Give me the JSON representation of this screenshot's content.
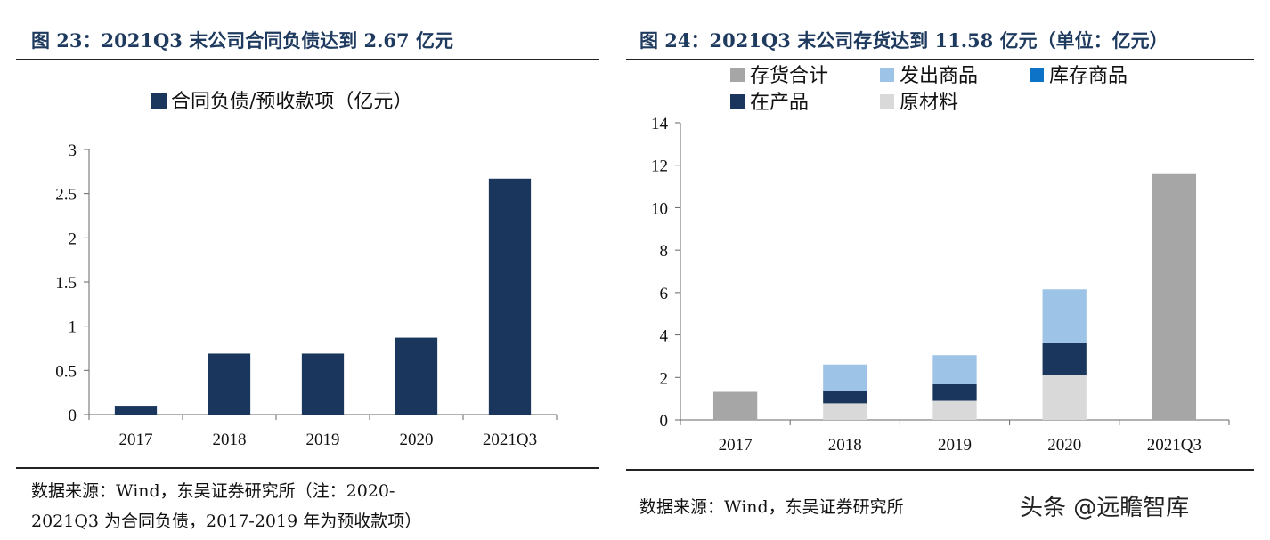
{
  "left_panel": {
    "title": "图 23：2021Q3 末公司合同负债达到 2.67 亿元",
    "source_line1": "数据来源：Wind，东吴证券研究所（注：2020-",
    "source_line2": "2021Q3 为合同负债，2017-2019 年为预收款项）"
  },
  "right_panel": {
    "title": "图 24：2021Q3 末公司存货达到 11.58 亿元（单位：亿元）",
    "source": "数据来源：Wind，东吴证券研究所",
    "watermark": "头条 @远瞻智库"
  },
  "chart_data": [
    {
      "type": "bar",
      "categories": [
        "2017",
        "2018",
        "2019",
        "2020",
        "2021Q3"
      ],
      "series": [
        {
          "name": "合同负债/预收款项（亿元）",
          "values": [
            0.1,
            0.69,
            0.69,
            0.87,
            2.67
          ],
          "color": "#1b365d"
        }
      ],
      "ylim": [
        0,
        3
      ],
      "yticks": [
        0,
        0.5,
        1,
        1.5,
        2,
        2.5,
        3
      ],
      "ytick_labels": [
        "0",
        "0.5",
        "1",
        "1.5",
        "2",
        "2.5",
        "3"
      ],
      "legend": "top-center",
      "grid": false
    },
    {
      "type": "bar",
      "stacked": true,
      "categories": [
        "2017",
        "2018",
        "2019",
        "2020",
        "2021Q3"
      ],
      "series": [
        {
          "name": "存货合计",
          "values": [
            1.32,
            null,
            null,
            null,
            11.58
          ],
          "color": "#a6a6a6"
        },
        {
          "name": "原材料",
          "values": [
            null,
            0.78,
            0.9,
            2.12,
            null
          ],
          "color": "#d9d9d9"
        },
        {
          "name": "在产品",
          "values": [
            null,
            0.6,
            0.78,
            1.53,
            null
          ],
          "color": "#1b365d"
        },
        {
          "name": "库存商品",
          "values": [
            null,
            0,
            0,
            0,
            null
          ],
          "color": "#0d73c7"
        },
        {
          "name": "发出商品",
          "values": [
            null,
            1.23,
            1.37,
            2.5,
            null
          ],
          "color": "#9dc3e6"
        }
      ],
      "legend_order": [
        "存货合计",
        "发出商品",
        "库存商品",
        "在产品",
        "原材料"
      ],
      "ylim": [
        0,
        14
      ],
      "yticks": [
        0,
        2,
        4,
        6,
        8,
        10,
        12,
        14
      ],
      "legend": "top",
      "grid": false
    }
  ]
}
